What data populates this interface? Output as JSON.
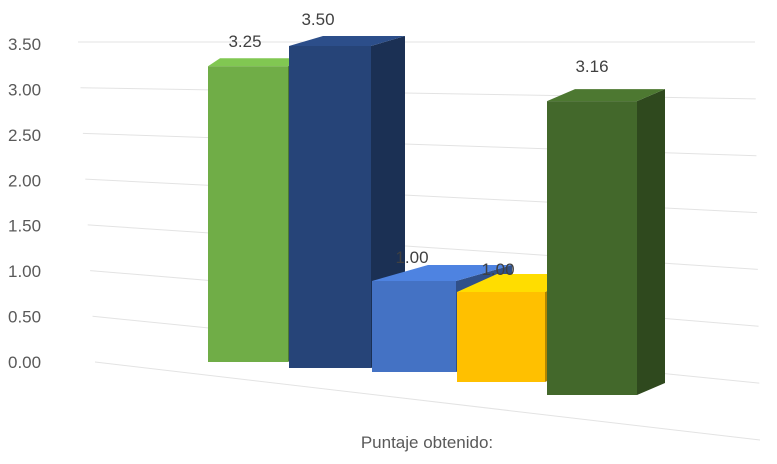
{
  "chart_data": {
    "type": "bar",
    "title": "",
    "xlabel": "Puntaje obtenido:",
    "ylabel": "",
    "ylim": [
      0,
      3.5
    ],
    "yticks": [
      "0.00",
      "0.50",
      "1.00",
      "1.50",
      "2.00",
      "2.50",
      "3.00",
      "3.50"
    ],
    "grid": true,
    "legend": "none",
    "bars": [
      {
        "value": 3.25,
        "label": "3.25",
        "color": "#70AD47"
      },
      {
        "value": 3.5,
        "label": "3.50",
        "color": "#264478"
      },
      {
        "value": 1.0,
        "label": "1.00",
        "color": "#4472C4"
      },
      {
        "value": 1.0,
        "label": "1.00",
        "color": "#FFC000"
      },
      {
        "value": 3.16,
        "label": "3.16",
        "color": "#43682B"
      }
    ]
  }
}
